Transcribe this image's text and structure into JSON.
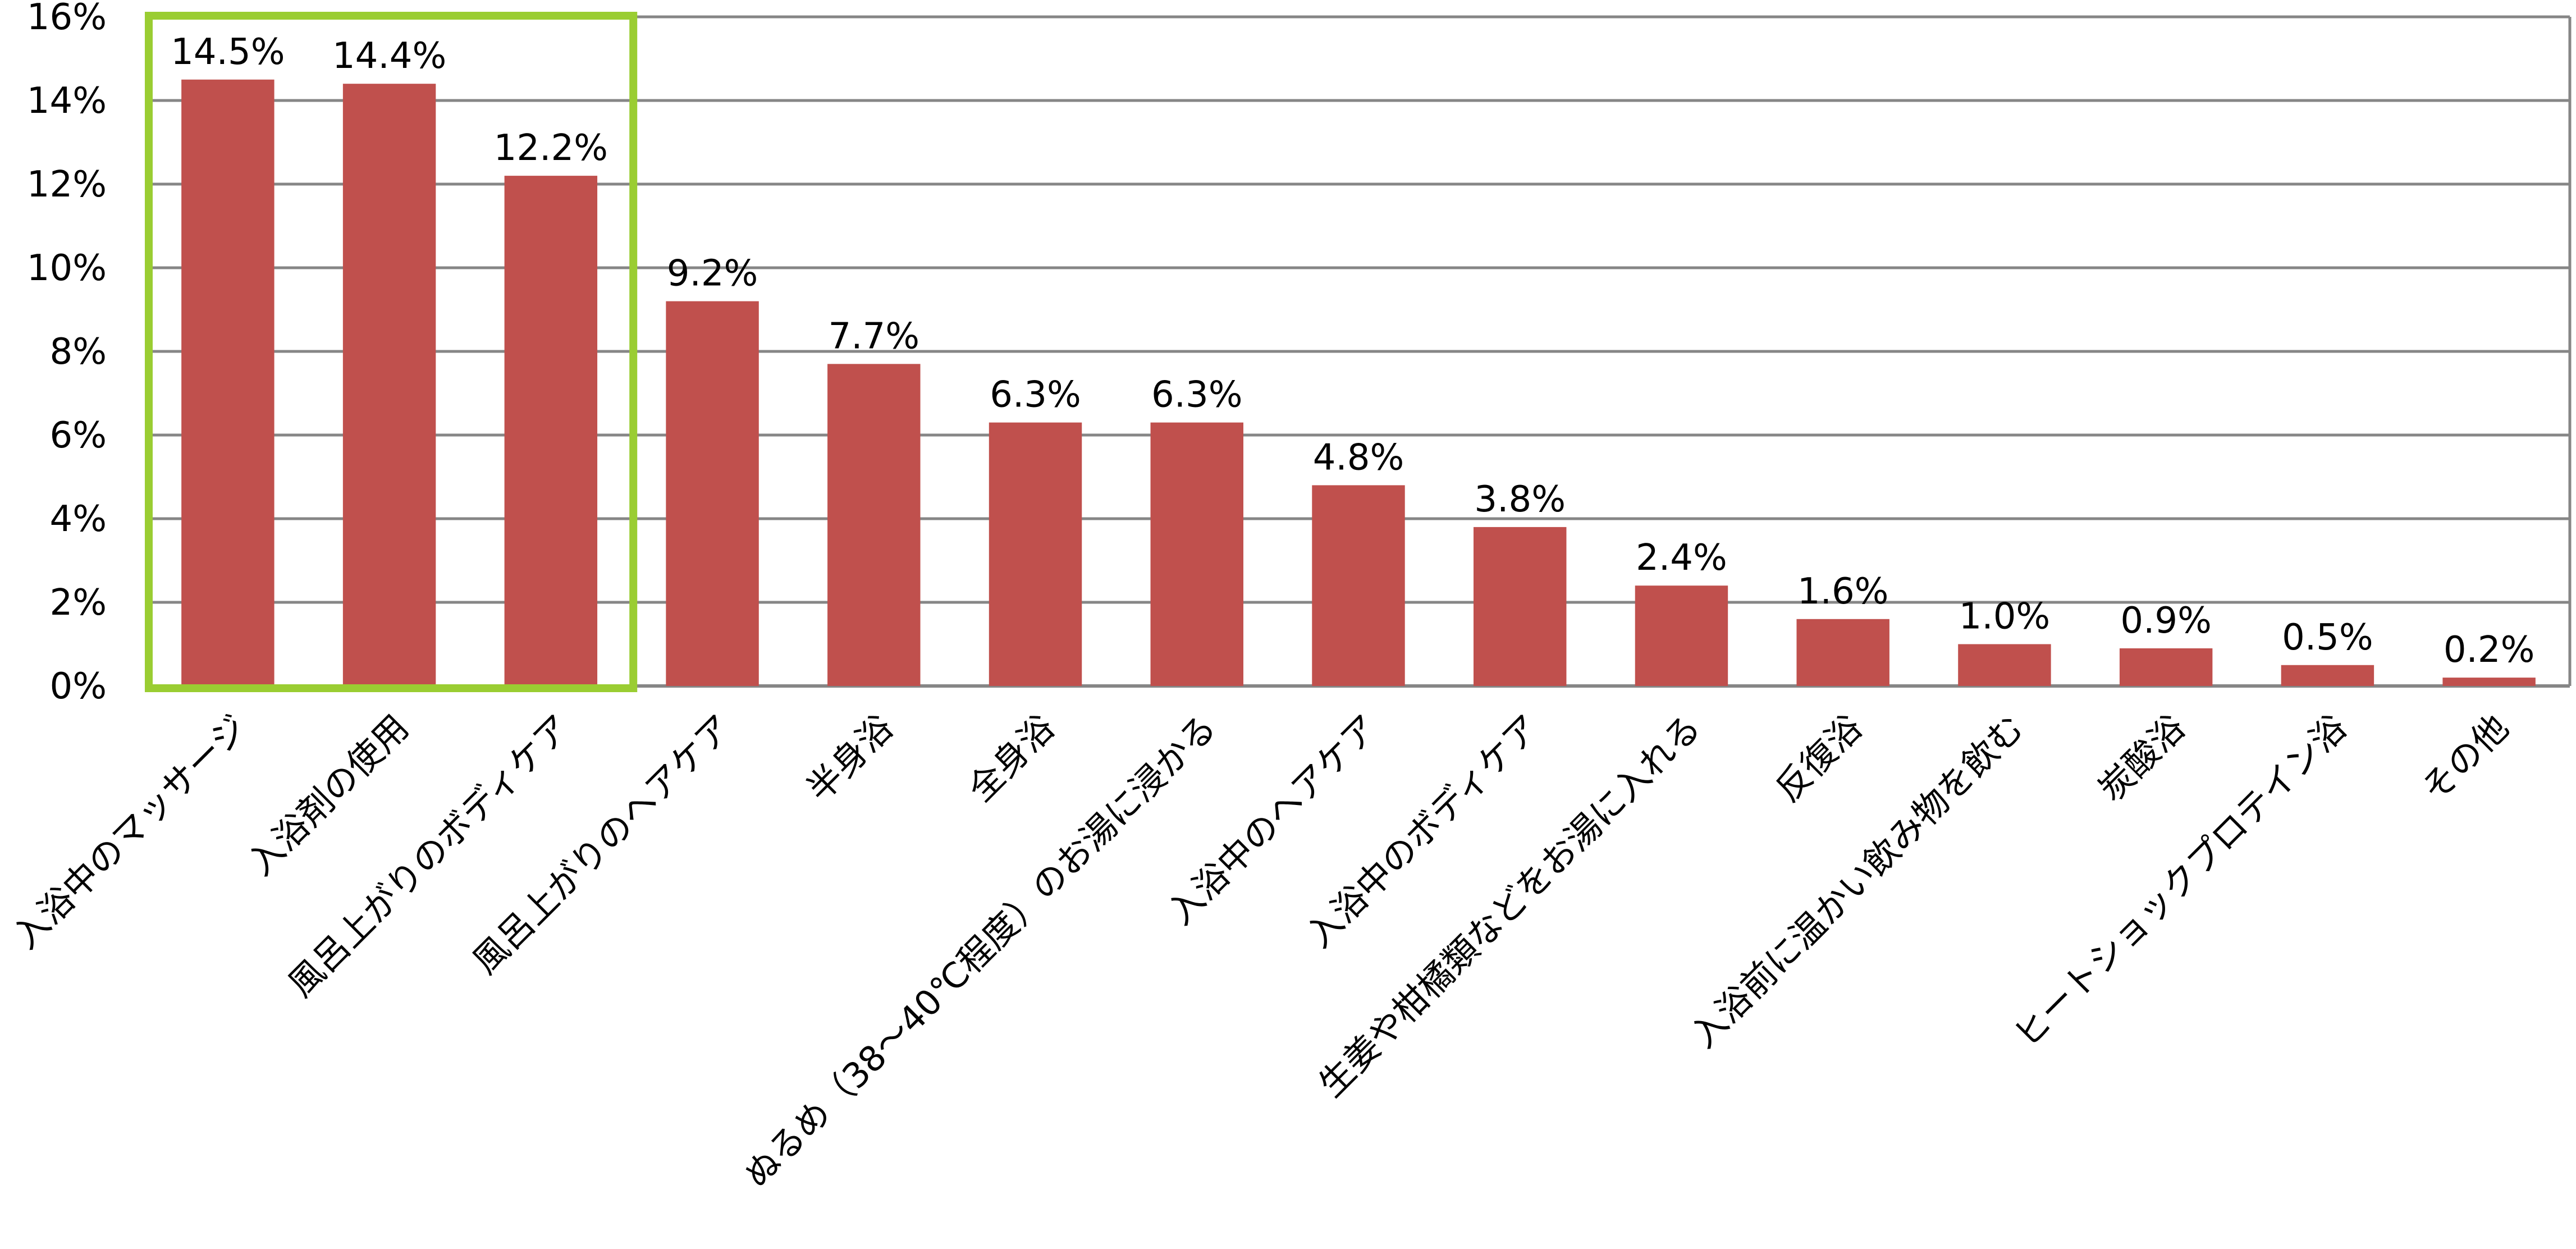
{
  "chart_data": {
    "type": "bar",
    "categories": [
      "入浴中のマッサージ",
      "入浴剤の使用",
      "風呂上がりのボディケア",
      "風呂上がりのヘアケア",
      "半身浴",
      "全身浴",
      "ぬるめ（38～40℃程度）のお湯に浸かる",
      "入浴中のヘアケア",
      "入浴中のボディケア",
      "生姜や柑橘類などをお湯に入れる",
      "反復浴",
      "入浴前に温かい飲み物を飲む",
      "炭酸浴",
      "ヒートショックプロテイン浴",
      "その他"
    ],
    "values": [
      14.5,
      14.4,
      12.2,
      9.2,
      7.7,
      6.3,
      6.3,
      4.8,
      3.8,
      2.4,
      1.6,
      1.0,
      0.9,
      0.5,
      0.2
    ],
    "data_labels": [
      "14.5%",
      "14.4%",
      "12.2%",
      "9.2%",
      "7.7%",
      "6.3%",
      "6.3%",
      "4.8%",
      "3.8%",
      "2.4%",
      "1.6%",
      "1.0%",
      "0.9%",
      "0.5%",
      "0.2%"
    ],
    "y_ticks": [
      "0%",
      "2%",
      "4%",
      "6%",
      "8%",
      "10%",
      "12%",
      "14%",
      "16%"
    ],
    "ylim": [
      0,
      16
    ],
    "grid": true,
    "legend": "none",
    "highlight": {
      "from_index": 0,
      "to_index": 2,
      "color": "#9acd32"
    },
    "colors": {
      "bar": "#c0504d",
      "grid": "#868686",
      "axis": "#868686"
    }
  }
}
